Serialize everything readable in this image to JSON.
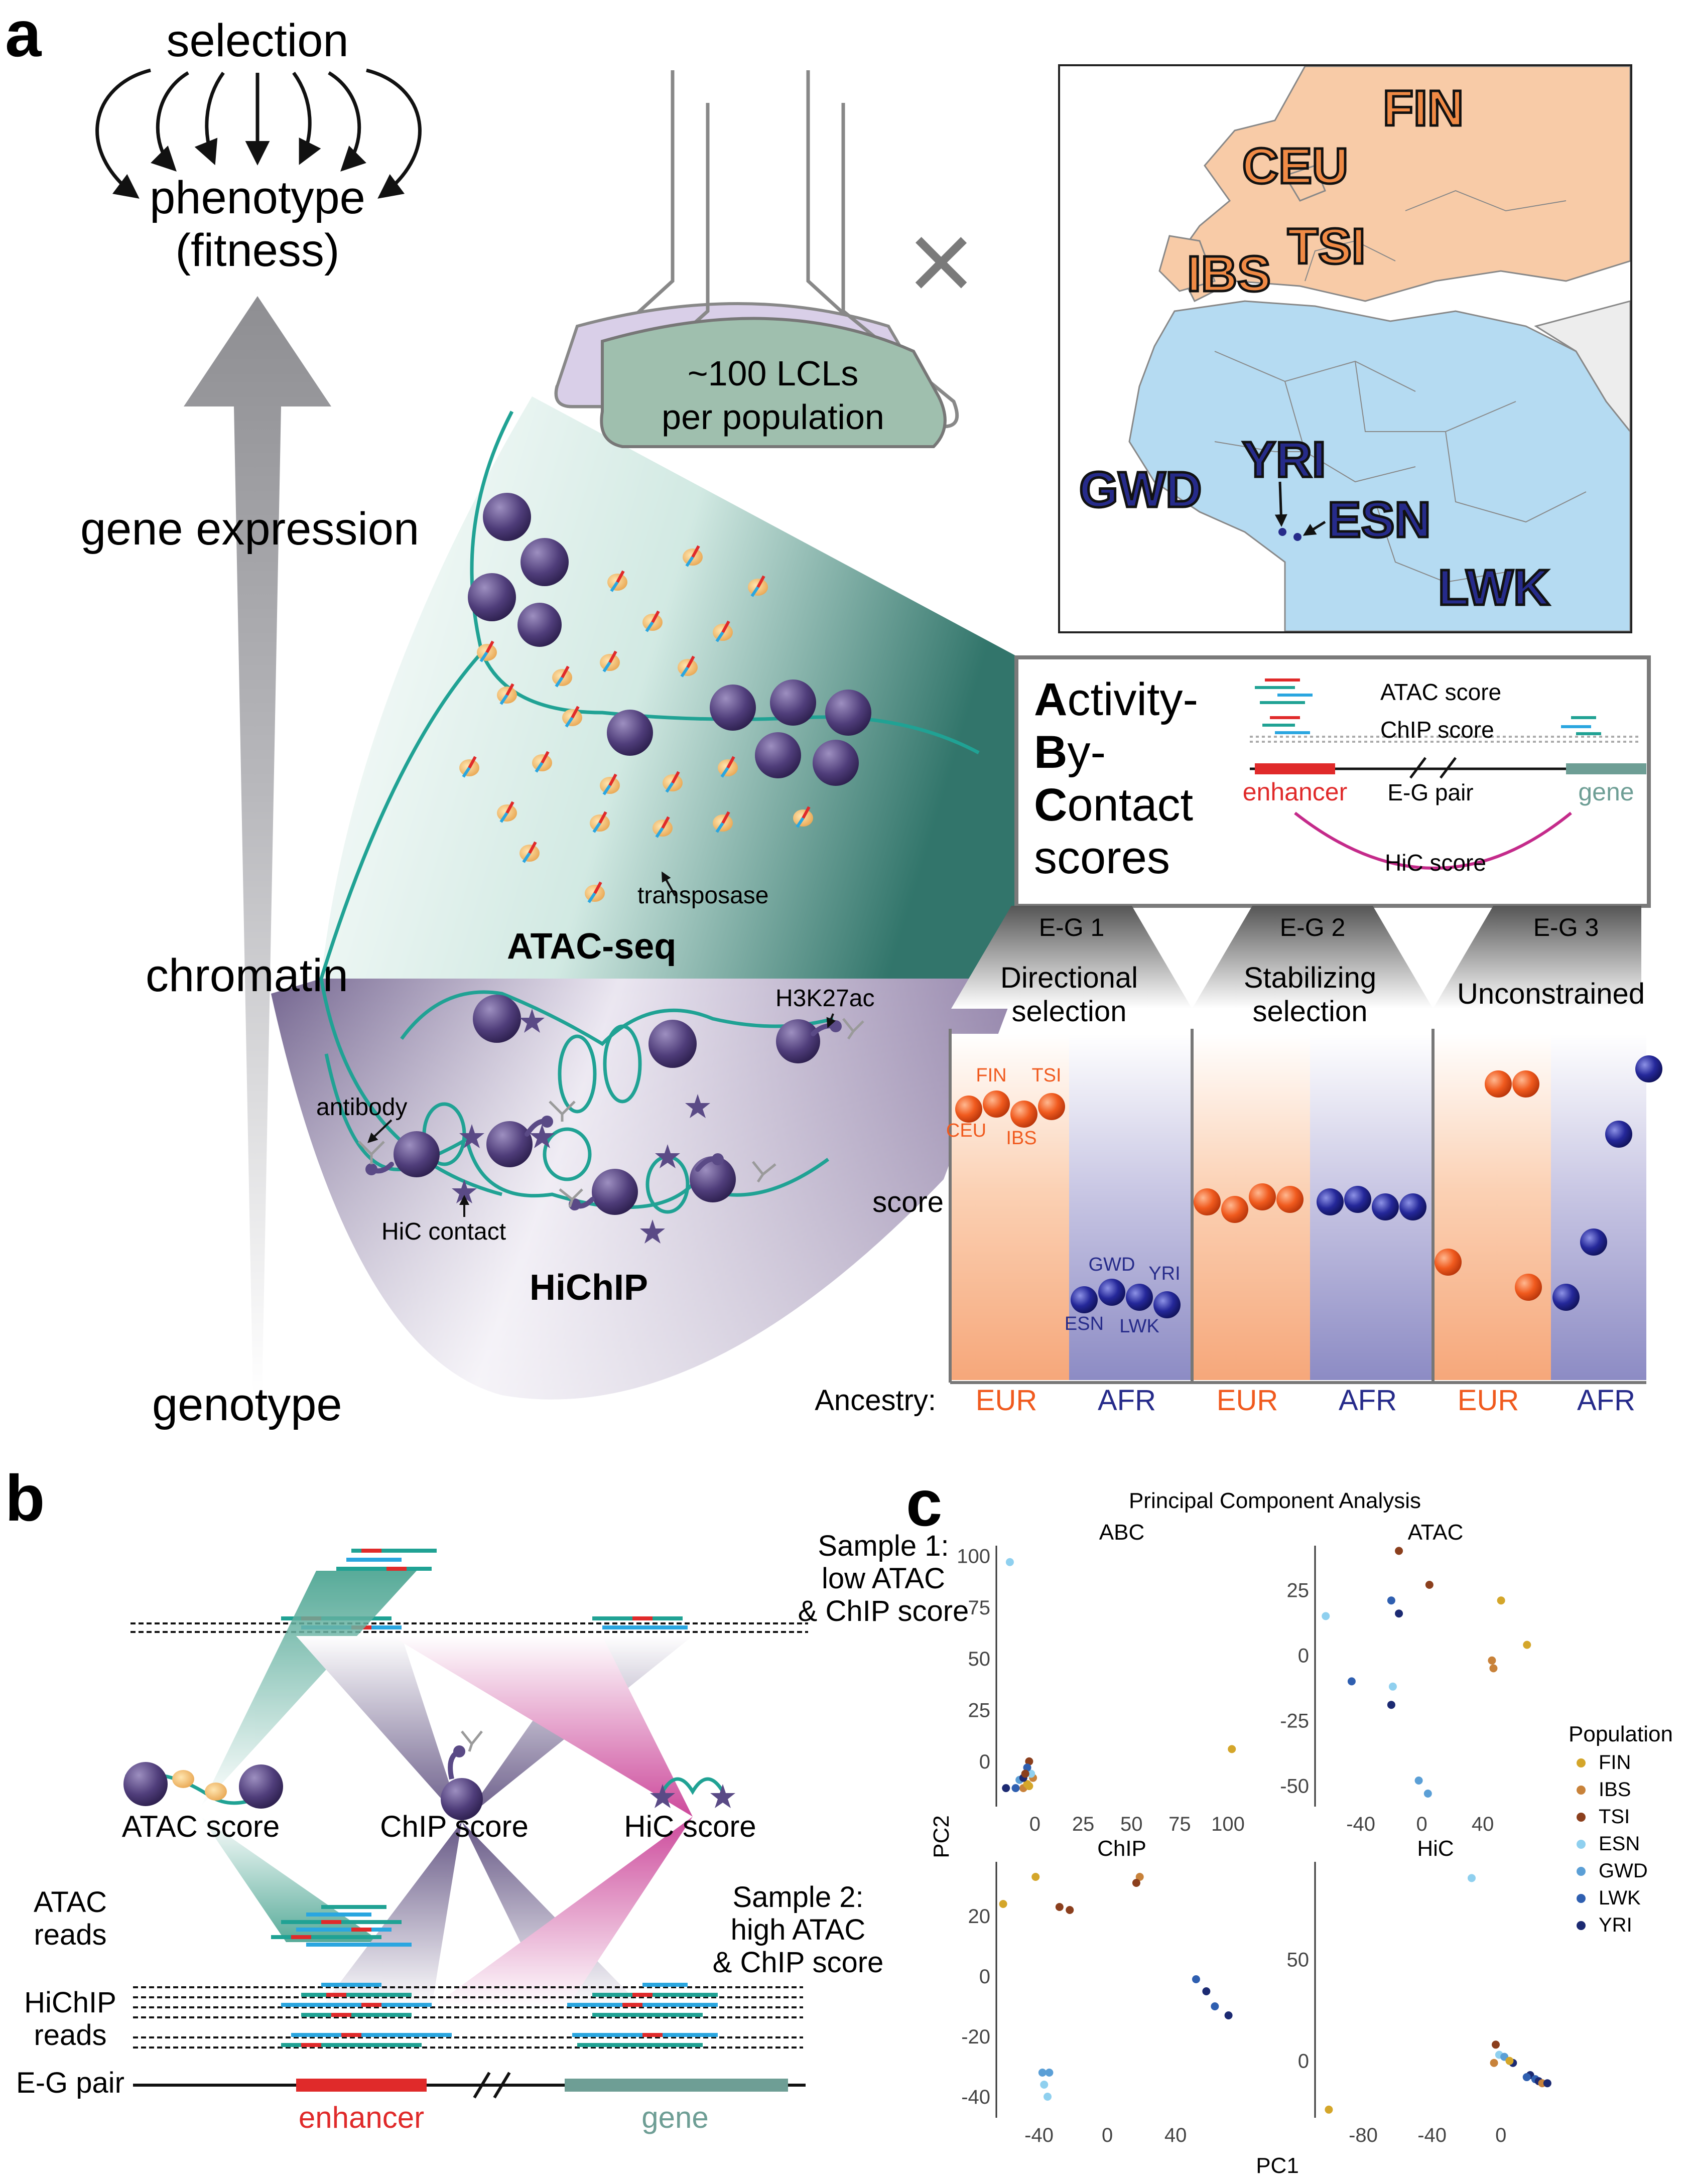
{
  "panel_a": {
    "label": "a",
    "axis": {
      "selection": "selection",
      "phenotype": "phenotype",
      "fitness": "(fitness)",
      "gene_expression": "gene expression",
      "chromatin": "chromatin",
      "genotype": "genotype"
    },
    "flask": {
      "line1": "~100 LCLs",
      "line2": "per population"
    },
    "cross": "×",
    "map": {
      "eur": [
        "FIN",
        "CEU",
        "TSI",
        "IBS"
      ],
      "afr": [
        "YRI",
        "GWD",
        "ESN",
        "LWK"
      ],
      "colors": {
        "eur": "#f08a45",
        "afr": "#262b8a",
        "eur_land": "#f8cba7",
        "afr_land": "#b5dbf2"
      }
    },
    "cone": {
      "atac_title": "ATAC-seq",
      "transposase": "transposase",
      "hichip_title": "HiChIP",
      "antibody": "antibody",
      "h3k27ac": "H3K27ac",
      "hic_contact": "HiC contact"
    },
    "abc": {
      "title_lines": [
        {
          "bold": "A",
          "rest": "ctivity-"
        },
        {
          "bold": "B",
          "rest": "y-"
        },
        {
          "bold": "C",
          "rest": "ontact"
        },
        {
          "bold": "",
          "rest": "scores"
        }
      ],
      "atac_score": "ATAC score",
      "chip_score": "ChIP score",
      "enhancer": "enhancer",
      "eg_pair": "E-G pair",
      "gene": "gene",
      "hic_score": "HiC score"
    },
    "selection_panels": [
      {
        "tab": "E-G 1",
        "line1": "Directional",
        "line2": "selection"
      },
      {
        "tab": "E-G 2",
        "line1": "Stabilizing",
        "line2": "selection"
      },
      {
        "tab": "E-G 3",
        "line1": "Unconstrained",
        "line2": ""
      }
    ],
    "score_label": "score",
    "eur_points_labels": [
      "FIN",
      "TSI",
      "CEU",
      "IBS"
    ],
    "afr_points_labels": [
      "GWD",
      "YRI",
      "ESN",
      "LWK"
    ],
    "ancestry_label": "Ancestry:",
    "ancestry": [
      "EUR",
      "AFR",
      "EUR",
      "AFR",
      "EUR",
      "AFR"
    ]
  },
  "panel_b": {
    "label": "b",
    "sample1": [
      "Sample 1:",
      "low ATAC",
      "& ChIP score"
    ],
    "sample2": [
      "Sample 2:",
      "high ATAC",
      "& ChIP score"
    ],
    "atac_score": "ATAC score",
    "chip_score": "ChIP score",
    "hic_score": "HiC score",
    "atac_reads": [
      "ATAC",
      "reads"
    ],
    "hichip_reads": [
      "HiChIP",
      "reads"
    ],
    "eg_pair": "E-G pair",
    "enhancer": "enhancer",
    "gene": "gene"
  },
  "panel_c": {
    "label": "c",
    "chart_data": {
      "type": "scatter",
      "title": "Principal Component Analysis",
      "xlabel": "PC1",
      "ylabel": "PC2",
      "legend_title": "Population",
      "legend_position": "right",
      "populations": [
        {
          "name": "FIN",
          "color": "#d4a62a"
        },
        {
          "name": "IBS",
          "color": "#c8823a"
        },
        {
          "name": "TSI",
          "color": "#8b3f1d"
        },
        {
          "name": "ESN",
          "color": "#8fd0ef"
        },
        {
          "name": "GWD",
          "color": "#5b9fd6"
        },
        {
          "name": "LWK",
          "color": "#2f5fb0"
        },
        {
          "name": "YRI",
          "color": "#1c2a72"
        }
      ],
      "facets": [
        {
          "title": "ABC",
          "xlim": [
            -20,
            110
          ],
          "ylim": [
            -22,
            105
          ],
          "xticks": [
            0,
            25,
            50,
            75,
            100
          ],
          "yticks": [
            0,
            25,
            50,
            75,
            100
          ],
          "show_x_ticklabels": true,
          "show_y_ticklabels": true,
          "points": [
            {
              "pop": "ESN",
              "x": -13,
              "y": 97
            },
            {
              "pop": "FIN",
              "x": 102,
              "y": 6
            },
            {
              "pop": "TSI",
              "x": -3,
              "y": 0
            },
            {
              "pop": "IBS",
              "x": -1,
              "y": -8
            },
            {
              "pop": "IBS",
              "x": -6,
              "y": -13
            },
            {
              "pop": "FIN",
              "x": -4,
              "y": -11
            },
            {
              "pop": "ESN",
              "x": -2,
              "y": -6
            },
            {
              "pop": "GWD",
              "x": -8,
              "y": -9
            },
            {
              "pop": "LWK",
              "x": -10,
              "y": -13
            },
            {
              "pop": "YRI",
              "x": -15,
              "y": -13
            },
            {
              "pop": "YRI",
              "x": -6,
              "y": -8
            },
            {
              "pop": "LWK",
              "x": -4,
              "y": -3
            },
            {
              "pop": "TSI",
              "x": -5,
              "y": -6
            },
            {
              "pop": "FIN",
              "x": -3,
              "y": -12
            }
          ]
        },
        {
          "title": "ATAC",
          "xlim": [
            -70,
            88
          ],
          "ylim": [
            -58,
            42
          ],
          "xticks": [
            -40,
            0,
            40
          ],
          "yticks": [
            -50,
            -25,
            0,
            25
          ],
          "show_x_ticklabels": true,
          "show_y_ticklabels": true,
          "points": [
            {
              "pop": "TSI",
              "x": -15,
              "y": 40
            },
            {
              "pop": "TSI",
              "x": 5,
              "y": 27
            },
            {
              "pop": "FIN",
              "x": 52,
              "y": 21
            },
            {
              "pop": "FIN",
              "x": 69,
              "y": 4
            },
            {
              "pop": "IBS",
              "x": 46,
              "y": -2
            },
            {
              "pop": "IBS",
              "x": 47,
              "y": -5
            },
            {
              "pop": "ESN",
              "x": -63,
              "y": 15
            },
            {
              "pop": "LWK",
              "x": -20,
              "y": 21
            },
            {
              "pop": "YRI",
              "x": -15,
              "y": 16
            },
            {
              "pop": "LWK",
              "x": -46,
              "y": -10
            },
            {
              "pop": "ESN",
              "x": -19,
              "y": -12
            },
            {
              "pop": "YRI",
              "x": -20,
              "y": -19
            },
            {
              "pop": "GWD",
              "x": -2,
              "y": -48
            },
            {
              "pop": "GWD",
              "x": 4,
              "y": -53
            }
          ]
        },
        {
          "title": "ChIP",
          "xlim": [
            -65,
            82
          ],
          "ylim": [
            -47,
            38
          ],
          "xticks": [
            -40,
            0,
            40
          ],
          "yticks": [
            -40,
            -20,
            0,
            20
          ],
          "show_x_ticklabels": true,
          "show_y_ticklabels": true,
          "points": [
            {
              "pop": "FIN",
              "x": -42,
              "y": 33
            },
            {
              "pop": "FIN",
              "x": -61,
              "y": 24
            },
            {
              "pop": "TSI",
              "x": -28,
              "y": 23
            },
            {
              "pop": "TSI",
              "x": -22,
              "y": 22
            },
            {
              "pop": "IBS",
              "x": 19,
              "y": 33
            },
            {
              "pop": "TSI",
              "x": 17,
              "y": 31
            },
            {
              "pop": "LWK",
              "x": 52,
              "y": -1
            },
            {
              "pop": "YRI",
              "x": 58,
              "y": -5
            },
            {
              "pop": "LWK",
              "x": 63,
              "y": -10
            },
            {
              "pop": "YRI",
              "x": 71,
              "y": -13
            },
            {
              "pop": "GWD",
              "x": -38,
              "y": -32
            },
            {
              "pop": "GWD",
              "x": -34,
              "y": -32
            },
            {
              "pop": "ESN",
              "x": -37,
              "y": -36
            },
            {
              "pop": "ESN",
              "x": -35,
              "y": -40
            }
          ]
        },
        {
          "title": "HiC",
          "xlim": [
            -108,
            32
          ],
          "ylim": [
            -28,
            98
          ],
          "xticks": [
            -80,
            -40,
            0
          ],
          "yticks": [
            0,
            50
          ],
          "show_x_ticklabels": true,
          "show_y_ticklabels": true,
          "points": [
            {
              "pop": "ESN",
              "x": -17,
              "y": 90
            },
            {
              "pop": "FIN",
              "x": -100,
              "y": -24
            },
            {
              "pop": "TSI",
              "x": -3,
              "y": 8
            },
            {
              "pop": "ESN",
              "x": -1,
              "y": 3
            },
            {
              "pop": "GWD",
              "x": 2,
              "y": 2
            },
            {
              "pop": "IBS",
              "x": -4,
              "y": -1
            },
            {
              "pop": "YRI",
              "x": 7,
              "y": -1
            },
            {
              "pop": "FIN",
              "x": 5,
              "y": 0
            },
            {
              "pop": "YRI",
              "x": 17,
              "y": -7
            },
            {
              "pop": "LWK",
              "x": 20,
              "y": -9
            },
            {
              "pop": "YRI",
              "x": 22,
              "y": -10
            },
            {
              "pop": "IBS",
              "x": 24,
              "y": -11
            },
            {
              "pop": "YRI",
              "x": 27,
              "y": -11
            },
            {
              "pop": "LWK",
              "x": 15,
              "y": -8
            }
          ]
        }
      ]
    }
  }
}
